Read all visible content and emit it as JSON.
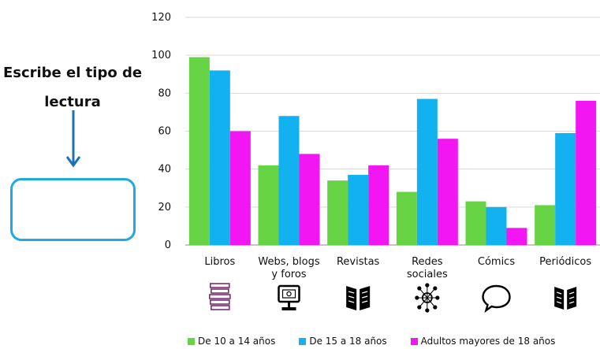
{
  "prompt": {
    "title": "Escribe el tipo de lectura"
  },
  "colors": {
    "series": [
      "#66d445",
      "#12b2f0",
      "#f216f2"
    ],
    "box_border": "#1ea8e6",
    "arrow": "#1f6fb5",
    "grid": "#d9d9d9",
    "icons": [
      "#7d2e72",
      "#000000",
      "#000000",
      "#000000",
      "#000000",
      "#000000"
    ]
  },
  "icons": [
    "book-stack-icon",
    "computer-monitor-icon",
    "open-book-icon",
    "social-network-icon",
    "speech-bubble-icon",
    "newspaper-icon"
  ],
  "chart_data": {
    "type": "bar",
    "title": "",
    "xlabel": "",
    "ylabel": "",
    "categories": [
      [
        "Libros"
      ],
      [
        "Webs, blogs",
        "y foros"
      ],
      [
        "Revistas"
      ],
      [
        "Redes",
        "sociales"
      ],
      [
        "Cómics"
      ],
      [
        "Periódicos"
      ]
    ],
    "series": [
      {
        "name": "De 10 a 14 años",
        "values": [
          99,
          42,
          34,
          28,
          23,
          21
        ]
      },
      {
        "name": "De 15 a 18 años",
        "values": [
          92,
          68,
          37,
          77,
          20,
          59
        ]
      },
      {
        "name": "Adultos mayores de 18 años",
        "values": [
          60,
          48,
          42,
          56,
          9,
          76
        ]
      }
    ],
    "ylim": [
      0,
      120
    ],
    "yticks": [
      0,
      20,
      40,
      60,
      80,
      100,
      120
    ],
    "grid": true,
    "legend": "bottom"
  }
}
